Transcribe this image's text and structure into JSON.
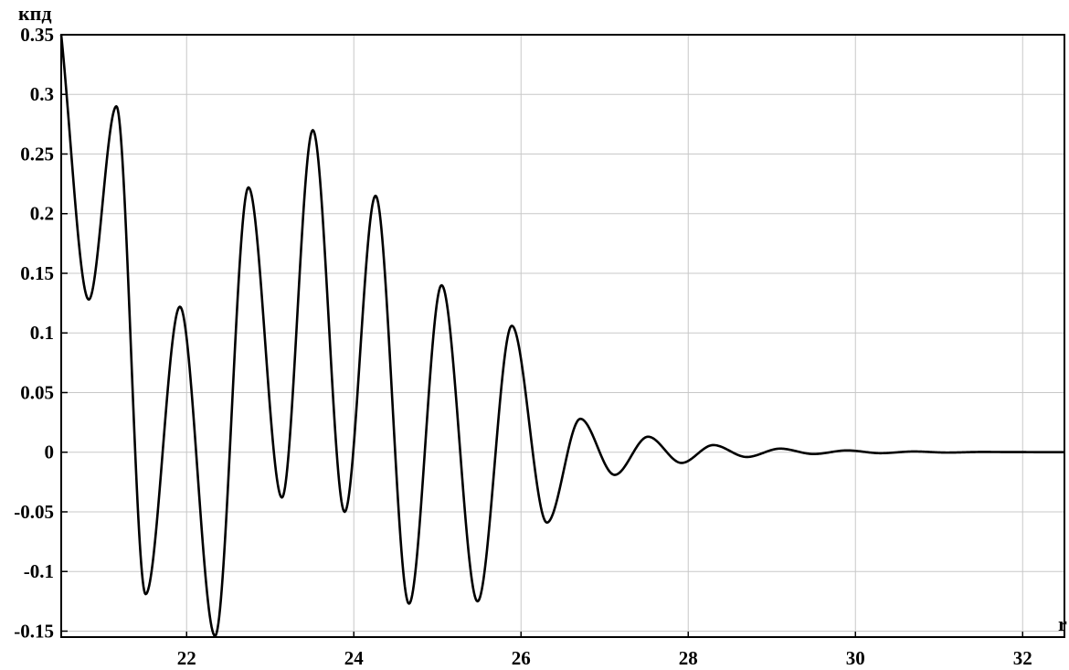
{
  "chart_data": {
    "type": "line",
    "title": "",
    "xlabel": "r",
    "ylabel": "кпд",
    "xlim": [
      20.5,
      32.5
    ],
    "ylim": [
      -0.155,
      0.35
    ],
    "grid": true,
    "xticks": [
      22,
      24,
      26,
      28,
      30,
      32
    ],
    "yticks": [
      0.35,
      0.3,
      0.25,
      0.2,
      0.15,
      0.1,
      0.05,
      0,
      -0.05,
      -0.1,
      -0.15
    ],
    "xtick_labels": [
      "22",
      "24",
      "26",
      "28",
      "30",
      "32"
    ],
    "ytick_labels": [
      "0.35",
      "0.3",
      "0.25",
      "0.2",
      "0.15",
      "0.1",
      "0.05",
      "0",
      "-0.05",
      "-0.1",
      "-0.15"
    ],
    "series": [
      {
        "color": "#000000",
        "points": [
          [
            20.5,
            0.35
          ],
          [
            20.83,
            0.128
          ],
          [
            21.16,
            0.29
          ],
          [
            21.51,
            -0.119
          ],
          [
            21.92,
            0.122
          ],
          [
            22.34,
            -0.154
          ],
          [
            22.74,
            0.222
          ],
          [
            23.14,
            -0.038
          ],
          [
            23.51,
            0.27
          ],
          [
            23.89,
            -0.05
          ],
          [
            24.26,
            0.215
          ],
          [
            24.66,
            -0.127
          ],
          [
            25.05,
            0.14
          ],
          [
            25.48,
            -0.125
          ],
          [
            25.89,
            0.106
          ],
          [
            26.31,
            -0.059
          ],
          [
            26.71,
            0.028
          ],
          [
            27.12,
            -0.019
          ],
          [
            27.52,
            0.013
          ],
          [
            27.92,
            -0.009
          ],
          [
            28.3,
            0.006
          ],
          [
            28.7,
            -0.004
          ],
          [
            29.1,
            0.003
          ],
          [
            29.5,
            -0.0015
          ],
          [
            29.9,
            0.0015
          ],
          [
            30.3,
            -0.0008
          ],
          [
            30.7,
            0.0006
          ],
          [
            31.1,
            -0.0003
          ],
          [
            31.5,
            0.0002
          ],
          [
            32.0,
            0.0001
          ],
          [
            32.5,
            0.0
          ]
        ]
      }
    ]
  }
}
